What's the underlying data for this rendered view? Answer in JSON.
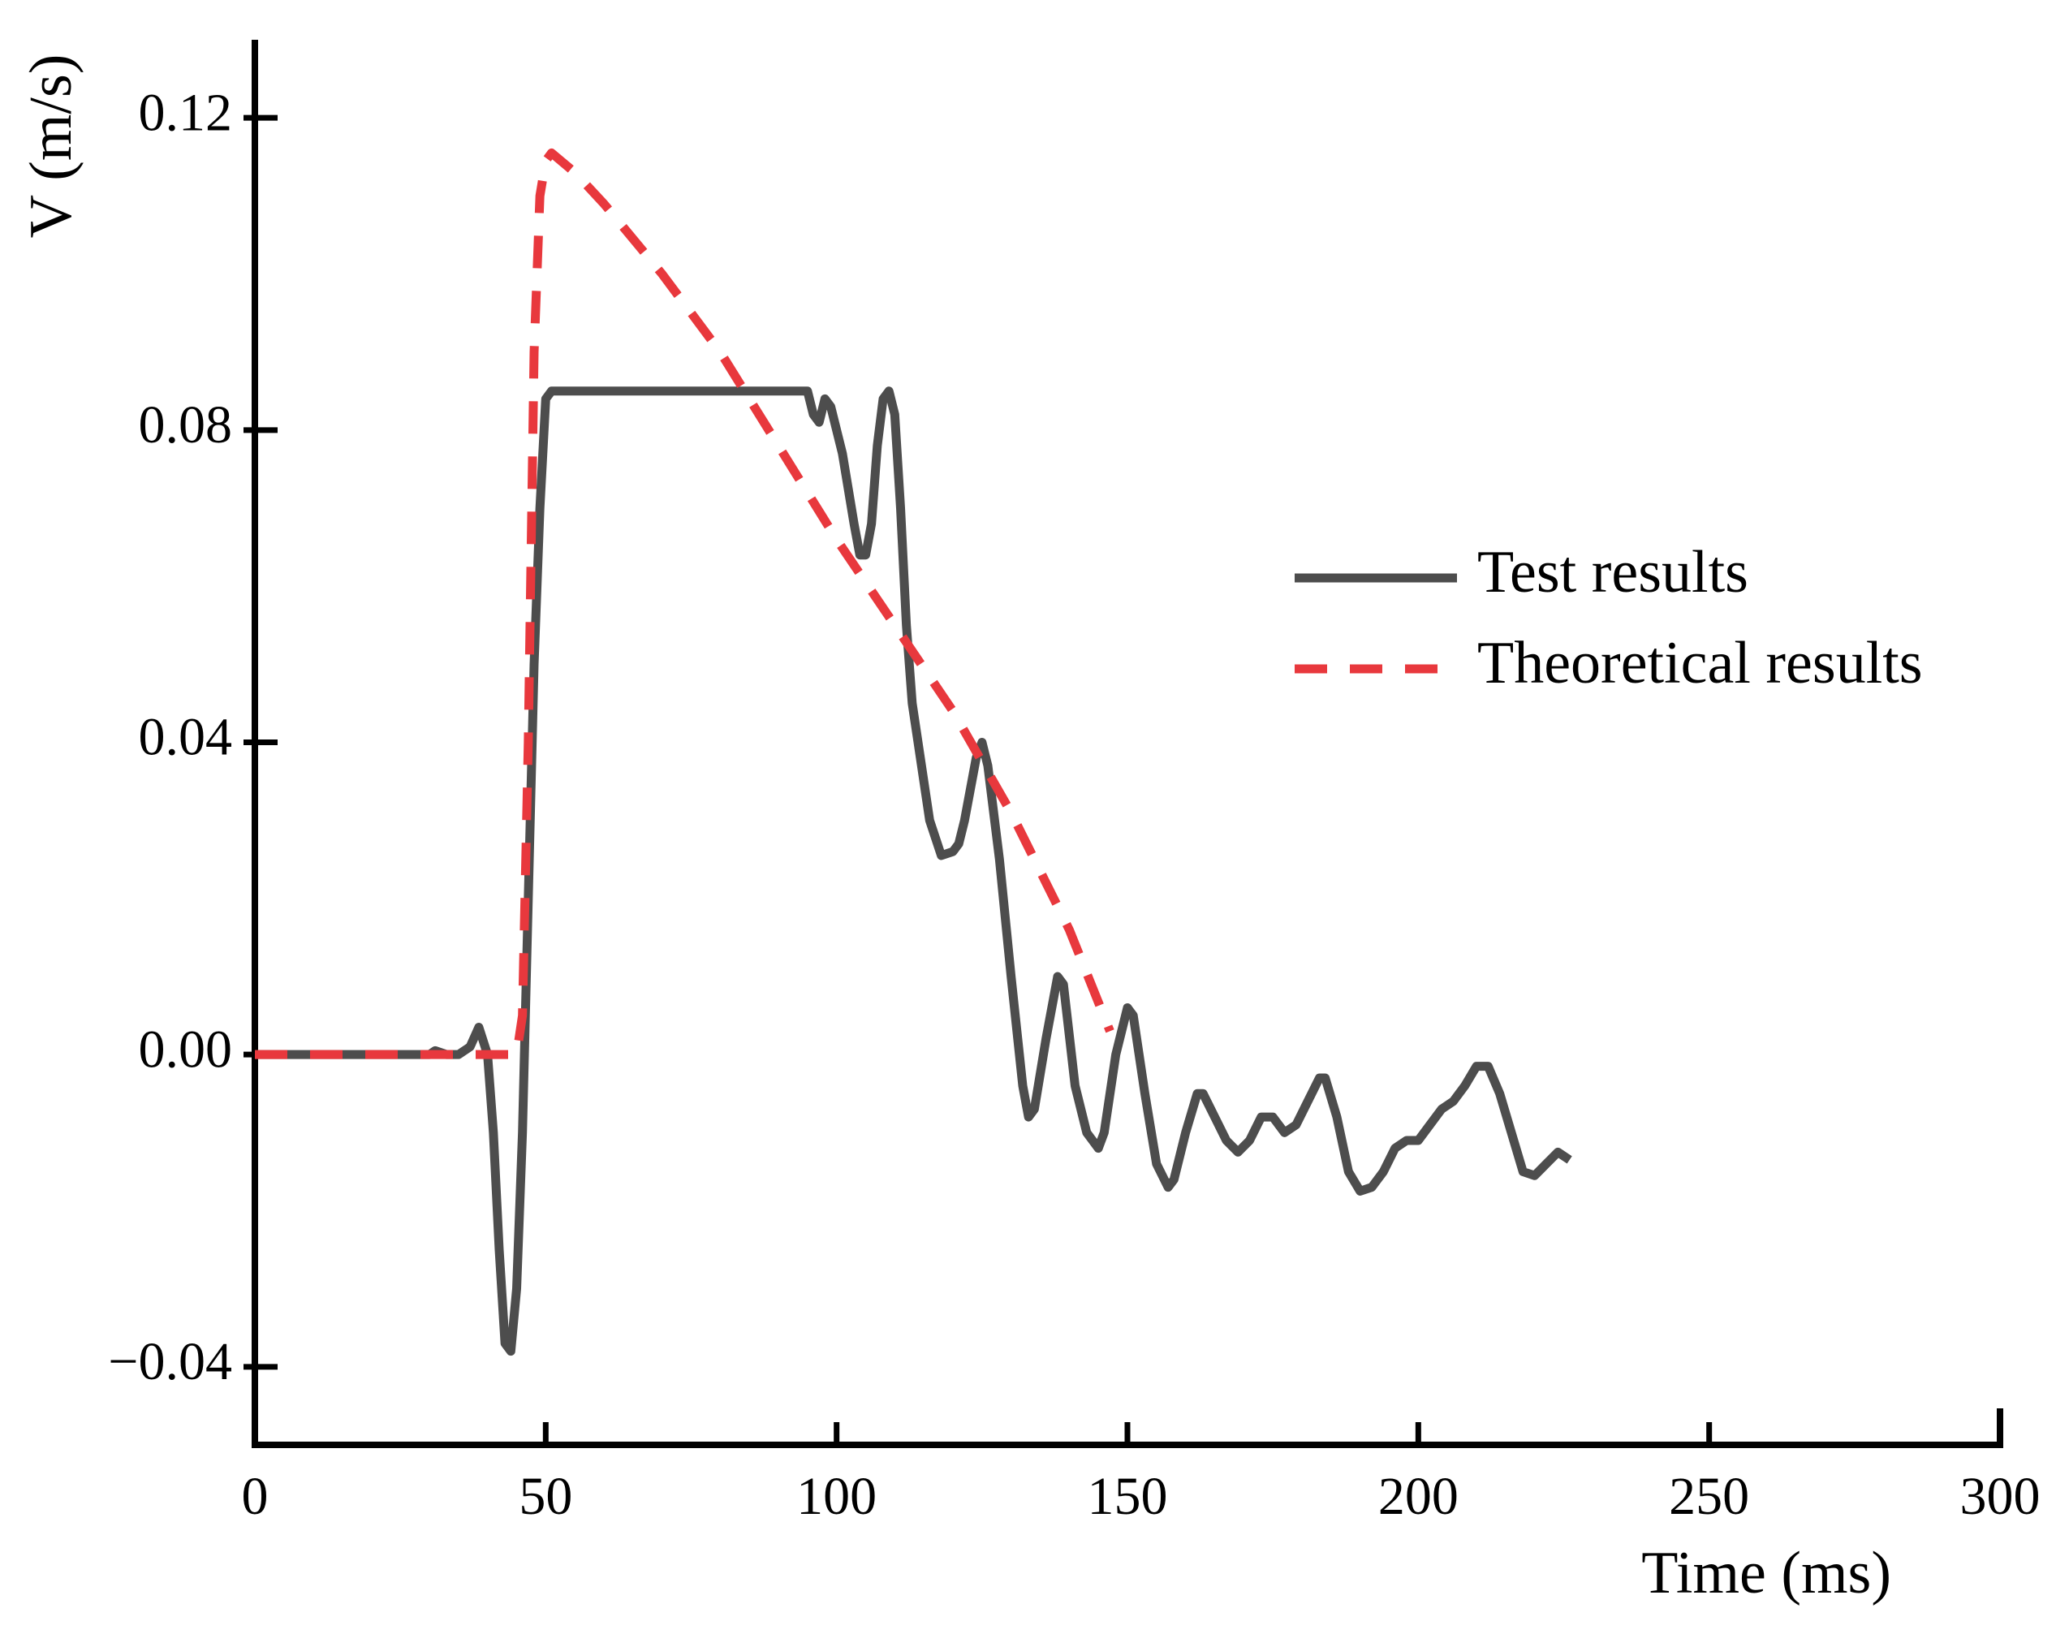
{
  "chart_data": {
    "type": "line",
    "xlabel": "Time (ms)",
    "ylabel": "V (m/s)",
    "xlim": [
      0,
      300
    ],
    "xticks": [
      0,
      50,
      100,
      150,
      200,
      250,
      300
    ],
    "ylim": [
      -0.05,
      0.13
    ],
    "yticks": [
      {
        "value": -0.04,
        "label": "−0.04"
      },
      {
        "value": 0,
        "label": "0.00"
      },
      0.04,
      0.08,
      0.12
    ],
    "legend": "right",
    "series": [
      {
        "name": "Test results",
        "color": "#4d4d4d",
        "style": "solid",
        "x": [
          0,
          30,
          31,
          33,
          35,
          37,
          38.5,
          40,
          41,
          42,
          43,
          44,
          45,
          46,
          47,
          48,
          49,
          50,
          51,
          95,
          96,
          97,
          98,
          99,
          101,
          103,
          104,
          105,
          106,
          107,
          108,
          109,
          110,
          111,
          112,
          113,
          114,
          116,
          118,
          120,
          121,
          122,
          124,
          125,
          126,
          128,
          130,
          132,
          133,
          134,
          136,
          138,
          139,
          141,
          143,
          145,
          146,
          148,
          150,
          151,
          153,
          155,
          157,
          158,
          160,
          162,
          163,
          165,
          167,
          169,
          171,
          173,
          175,
          177,
          179,
          181,
          183,
          184,
          186,
          188,
          190,
          192,
          194,
          196,
          198,
          200,
          202,
          204,
          206,
          208,
          210,
          212,
          214,
          216,
          218,
          220,
          222,
          224,
          226
        ],
        "values": [
          0,
          0,
          0.0005,
          0,
          0,
          0.001,
          0.0035,
          0,
          -0.01,
          -0.025,
          -0.037,
          -0.038,
          -0.03,
          -0.01,
          0.02,
          0.05,
          0.07,
          0.084,
          0.085,
          0.085,
          0.082,
          0.081,
          0.084,
          0.083,
          0.077,
          0.068,
          0.064,
          0.064,
          0.068,
          0.078,
          0.084,
          0.085,
          0.082,
          0.07,
          0.055,
          0.045,
          0.04,
          0.03,
          0.0255,
          0.026,
          0.027,
          0.03,
          0.038,
          0.04,
          0.037,
          0.025,
          0.01,
          -0.004,
          -0.008,
          -0.007,
          0.002,
          0.01,
          0.009,
          -0.004,
          -0.01,
          -0.012,
          -0.01,
          0,
          0.006,
          0.005,
          -0.005,
          -0.014,
          -0.017,
          -0.016,
          -0.01,
          -0.005,
          -0.005,
          -0.008,
          -0.011,
          -0.0125,
          -0.011,
          -0.008,
          -0.008,
          -0.01,
          -0.009,
          -0.006,
          -0.003,
          -0.003,
          -0.008,
          -0.015,
          -0.0175,
          -0.017,
          -0.015,
          -0.012,
          -0.011,
          -0.011,
          -0.009,
          -0.007,
          -0.006,
          -0.004,
          -0.0015,
          -0.0015,
          -0.005,
          -0.01,
          -0.015,
          -0.0155,
          -0.014,
          -0.0125,
          -0.0135
        ]
      },
      {
        "name": "Theoretical results",
        "color": "#e8383d",
        "style": "dashed",
        "x": [
          0,
          45,
          46,
          47,
          48,
          49,
          50,
          51,
          55,
          60,
          70,
          80,
          90,
          100,
          110,
          120,
          130,
          140,
          147
        ],
        "values": [
          0,
          0,
          0.005,
          0.04,
          0.09,
          0.11,
          0.1145,
          0.1155,
          0.113,
          0.109,
          0.1,
          0.09,
          0.078,
          0.066,
          0.055,
          0.044,
          0.031,
          0.016,
          0.003
        ]
      }
    ]
  }
}
